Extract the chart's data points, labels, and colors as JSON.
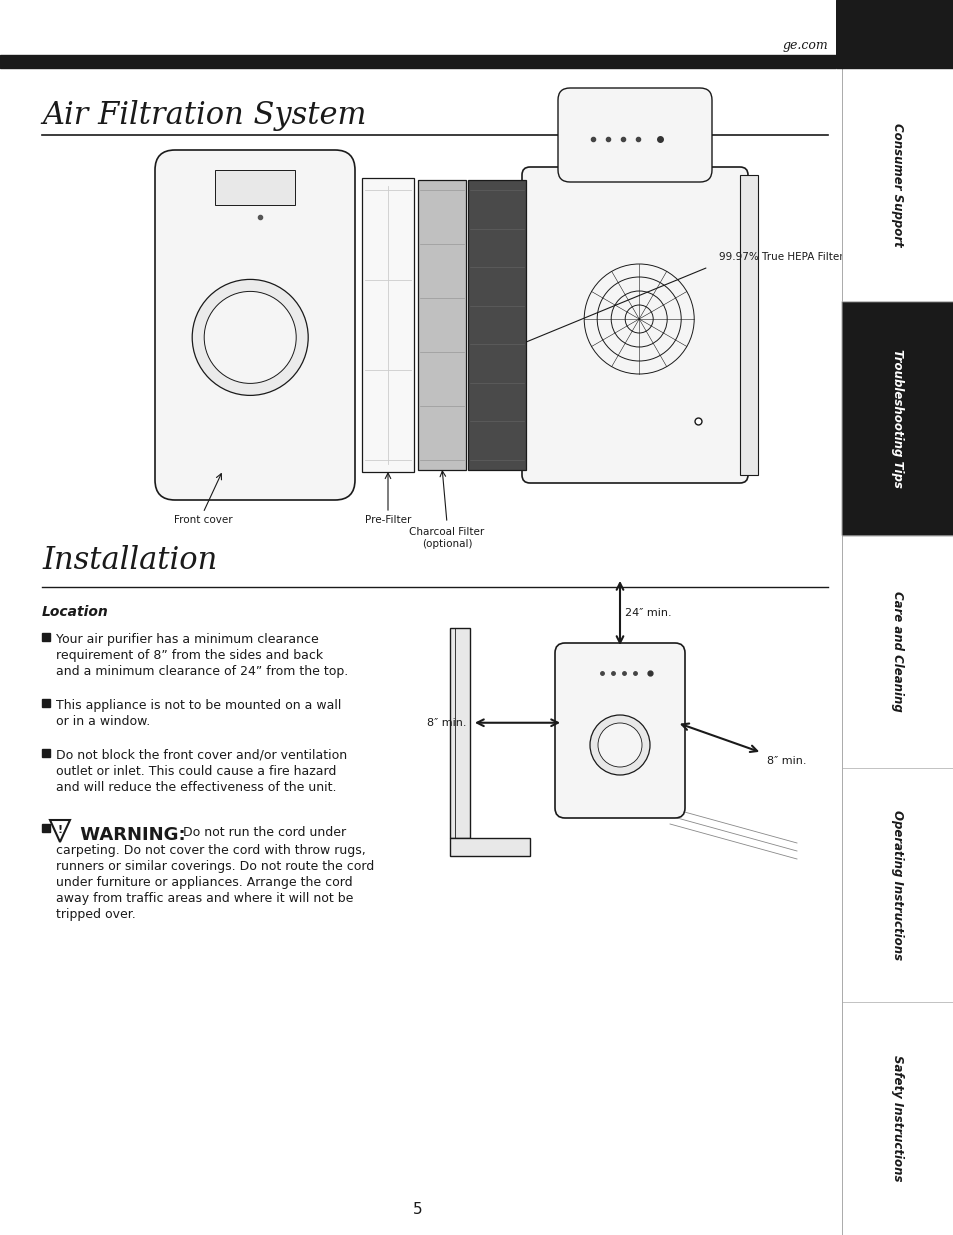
{
  "page_bg": "#ffffff",
  "top_bar_color": "#1a1a1a",
  "sidebar_bg_active": "#1a1a1a",
  "sidebar_bg_inactive": "#ffffff",
  "sidebar_text_active": "#ffffff",
  "sidebar_text_inactive": "#1a1a1a",
  "ge_com_text": "ge.com",
  "title1": "Air Filtration System",
  "title2": "Installation",
  "section_header": "Location",
  "sidebar_items": [
    "Safety Instructions",
    "Operating Instructions",
    "Care and Cleaning",
    "Troubleshooting Tips",
    "Consumer Support"
  ],
  "sidebar_active_index": 1,
  "page_number": "5",
  "bp1_line1": "Your air purifier has a minimum clearance",
  "bp1_line2": "requirement of 8” from the sides and back",
  "bp1_line3": "and a minimum clearance of 24” from the top.",
  "bp2_line1": "This appliance is not to be mounted on a wall",
  "bp2_line2": "or in a window.",
  "bp3_line1": "Do not block the front cover and/or ventilation",
  "bp3_line2": "outlet or inlet. This could cause a fire hazard",
  "bp3_line3": "and will reduce the effectiveness of the unit.",
  "warning_bold": "⚠  WARNING:",
  "warning_line1": "Do not run the cord under",
  "warning_line2": "carpeting. Do not cover the cord with throw rugs,",
  "warning_line3": "runners or similar coverings. Do not route the cord",
  "warning_line4": "under furniture or appliances. Arrange the cord",
  "warning_line5": "away from traffic areas and where it will not be",
  "warning_line6": "tripped over.",
  "label_front_cover": "Front cover",
  "label_pre_filter": "Pre-Filter",
  "label_charcoal": "Charcoal Filter\n(optional)",
  "label_hepa": "99.97% True HEPA Filter",
  "label_8min_left": "8″ min.",
  "label_8min_right": "8″ min.",
  "label_24min": "24″ min."
}
